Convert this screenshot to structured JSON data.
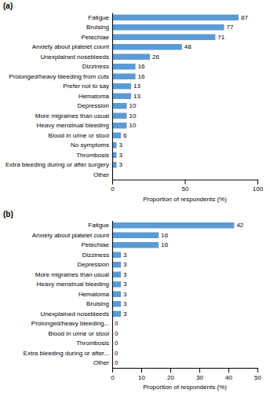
{
  "chart_data": [
    {
      "type": "bar",
      "orientation": "horizontal",
      "title": "(a)",
      "categories": [
        "Other",
        "Extra bleeding during or after surgery",
        "Thrombosis",
        "No symptoms",
        "Blood in urine or stool",
        "Heavy menstrual bleeding",
        "More migraines than usual",
        "Depression",
        "Hematoma",
        "Prefer not to say",
        "Prolonged/heavy bleeding from cuts",
        "Dizziness",
        "Unexplained nosebleeds",
        "Anxiety about platelet count",
        "Petechiae",
        "Bruising",
        "Fatigue"
      ],
      "values": [
        0,
        3,
        3,
        3,
        6,
        10,
        10,
        10,
        13,
        13,
        16,
        16,
        26,
        48,
        71,
        77,
        87
      ],
      "value_labels": [
        null,
        "3",
        "3",
        "3",
        "6",
        "10",
        "10",
        "10",
        "13",
        "13",
        "16",
        "16",
        "26",
        "48",
        "71",
        "77",
        "87"
      ],
      "data_labels": true,
      "color": "#5b9bd5",
      "xlim": [
        0,
        100
      ],
      "xticks": [
        0,
        50,
        100
      ],
      "xlabel": "Proportion of respondents (%)"
    },
    {
      "type": "bar",
      "orientation": "horizontal",
      "title": "(b)",
      "categories": [
        "Other",
        "Extra bleeding during or after...",
        "Thrombosis",
        "Blood in urine or stool",
        "Prolonged/heavy bleeding...",
        "Unexplained nosebleeds",
        "Bruising",
        "Hematoma",
        "Heavy menstrual bleeding",
        "More migraines than usual",
        "Depression",
        "Dizziness",
        "Petechiae",
        "Anxiety about platelet count",
        "Fatigue"
      ],
      "values": [
        0,
        0,
        0,
        0,
        0,
        3,
        3,
        3,
        3,
        3,
        3,
        3,
        16,
        16,
        42
      ],
      "data_labels": true,
      "color": "#5b9bd5",
      "xlim": [
        0,
        50
      ],
      "xticks": [
        0,
        10,
        20,
        30,
        40,
        50
      ],
      "xlabel": "Proportion of respondents (%)"
    }
  ]
}
